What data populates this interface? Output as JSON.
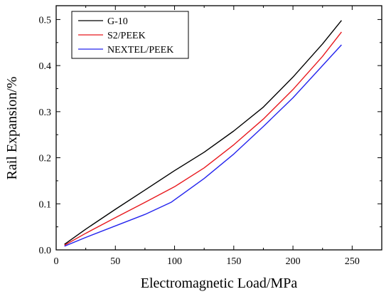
{
  "chart_data": {
    "type": "line",
    "title": "",
    "xlabel": "Electromagnetic Load/MPa",
    "ylabel": "Rail Expansion/%",
    "xlim": [
      0,
      275
    ],
    "ylim": [
      0,
      0.53
    ],
    "x_ticks": [
      0,
      50,
      100,
      150,
      200,
      250
    ],
    "y_ticks": [
      0.0,
      0.1,
      0.2,
      0.3,
      0.4,
      0.5
    ],
    "x_tick_labels": [
      "0",
      "50",
      "100",
      "150",
      "200",
      "250"
    ],
    "y_tick_labels": [
      "0.0",
      "0.1",
      "0.2",
      "0.3",
      "0.4",
      "0.5"
    ],
    "grid": false,
    "legend_position": "top-left",
    "series": [
      {
        "name": "G-10",
        "color": "#000000",
        "x": [
          7,
          25,
          50,
          75,
          100,
          125,
          150,
          175,
          200,
          225,
          241
        ],
        "y": [
          0.012,
          0.045,
          0.088,
          0.13,
          0.172,
          0.212,
          0.258,
          0.31,
          0.375,
          0.447,
          0.498
        ]
      },
      {
        "name": "S2/PEEK",
        "color": "#e8191e",
        "x": [
          7,
          25,
          50,
          75,
          100,
          125,
          150,
          175,
          200,
          225,
          241
        ],
        "y": [
          0.01,
          0.036,
          0.07,
          0.103,
          0.137,
          0.178,
          0.228,
          0.284,
          0.348,
          0.42,
          0.473
        ]
      },
      {
        "name": "NEXTEL/PEEK",
        "color": "#2424ee",
        "x": [
          7,
          25,
          50,
          75,
          97,
          125,
          150,
          175,
          200,
          225,
          241
        ],
        "y": [
          0.008,
          0.027,
          0.052,
          0.077,
          0.103,
          0.155,
          0.208,
          0.268,
          0.33,
          0.4,
          0.445
        ]
      }
    ]
  }
}
